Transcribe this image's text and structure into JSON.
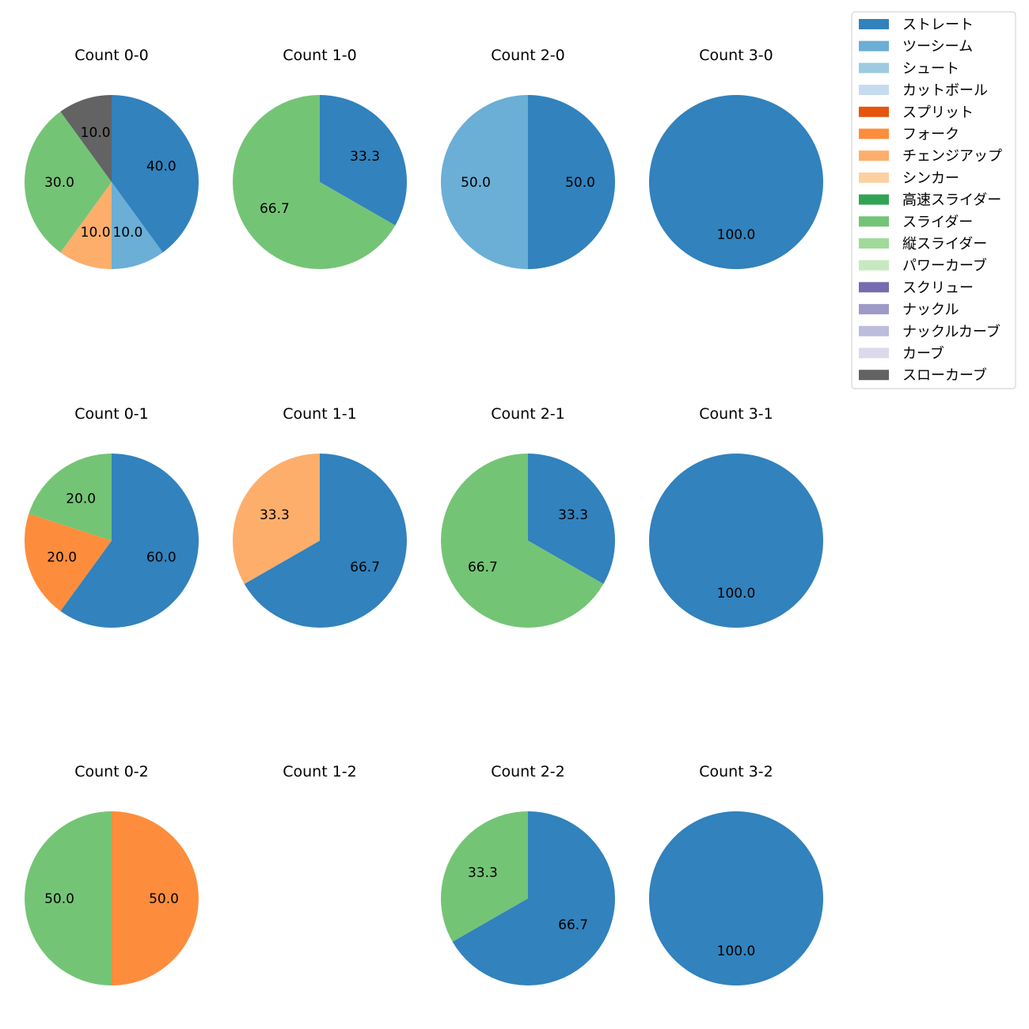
{
  "chart_data": {
    "type": "pie",
    "legend_position": "top-right",
    "legend": [
      {
        "name": "ストレート",
        "color": "#3182bd"
      },
      {
        "name": "ツーシーム",
        "color": "#6baed6"
      },
      {
        "name": "シュート",
        "color": "#9ecae1"
      },
      {
        "name": "カットボール",
        "color": "#c6dbef"
      },
      {
        "name": "スプリット",
        "color": "#e6550d"
      },
      {
        "name": "フォーク",
        "color": "#fd8d3c"
      },
      {
        "name": "チェンジアップ",
        "color": "#fdae6b"
      },
      {
        "name": "シンカー",
        "color": "#fdd0a2"
      },
      {
        "name": "高速スライダー",
        "color": "#31a354"
      },
      {
        "name": "スライダー",
        "color": "#74c476"
      },
      {
        "name": "縦スライダー",
        "color": "#a1d99b"
      },
      {
        "name": "パワーカーブ",
        "color": "#c7e9c0"
      },
      {
        "name": "スクリュー",
        "color": "#756bb1"
      },
      {
        "name": "ナックル",
        "color": "#9e9ac8"
      },
      {
        "name": "ナックルカーブ",
        "color": "#bcbddc"
      },
      {
        "name": "カーブ",
        "color": "#dadaeb"
      },
      {
        "name": "スローカーブ",
        "color": "#636363"
      }
    ],
    "panels": [
      {
        "title": "Count 0-0",
        "slices": [
          {
            "pitch": "ストレート",
            "value": 40.0
          },
          {
            "pitch": "ツーシーム",
            "value": 10.0
          },
          {
            "pitch": "チェンジアップ",
            "value": 10.0
          },
          {
            "pitch": "スライダー",
            "value": 30.0
          },
          {
            "pitch": "スローカーブ",
            "value": 10.0
          }
        ]
      },
      {
        "title": "Count 1-0",
        "slices": [
          {
            "pitch": "ストレート",
            "value": 33.3
          },
          {
            "pitch": "スライダー",
            "value": 66.7
          }
        ]
      },
      {
        "title": "Count 2-0",
        "slices": [
          {
            "pitch": "ストレート",
            "value": 50.0
          },
          {
            "pitch": "ツーシーム",
            "value": 50.0
          }
        ]
      },
      {
        "title": "Count 3-0",
        "slices": [
          {
            "pitch": "ストレート",
            "value": 100.0
          }
        ]
      },
      {
        "title": "Count 0-1",
        "slices": [
          {
            "pitch": "ストレート",
            "value": 60.0
          },
          {
            "pitch": "フォーク",
            "value": 20.0
          },
          {
            "pitch": "スライダー",
            "value": 20.0
          }
        ]
      },
      {
        "title": "Count 1-1",
        "slices": [
          {
            "pitch": "ストレート",
            "value": 66.7
          },
          {
            "pitch": "チェンジアップ",
            "value": 33.3
          }
        ]
      },
      {
        "title": "Count 2-1",
        "slices": [
          {
            "pitch": "ストレート",
            "value": 33.3
          },
          {
            "pitch": "スライダー",
            "value": 66.7
          }
        ]
      },
      {
        "title": "Count 3-1",
        "slices": [
          {
            "pitch": "ストレート",
            "value": 100.0
          }
        ]
      },
      {
        "title": "Count 0-2",
        "slices": [
          {
            "pitch": "フォーク",
            "value": 50.0
          },
          {
            "pitch": "スライダー",
            "value": 50.0
          }
        ]
      },
      {
        "title": "Count 1-2",
        "slices": []
      },
      {
        "title": "Count 2-2",
        "slices": [
          {
            "pitch": "ストレート",
            "value": 66.7
          },
          {
            "pitch": "スライダー",
            "value": 33.3
          }
        ]
      },
      {
        "title": "Count 3-2",
        "slices": [
          {
            "pitch": "ストレート",
            "value": 100.0
          }
        ]
      }
    ]
  }
}
